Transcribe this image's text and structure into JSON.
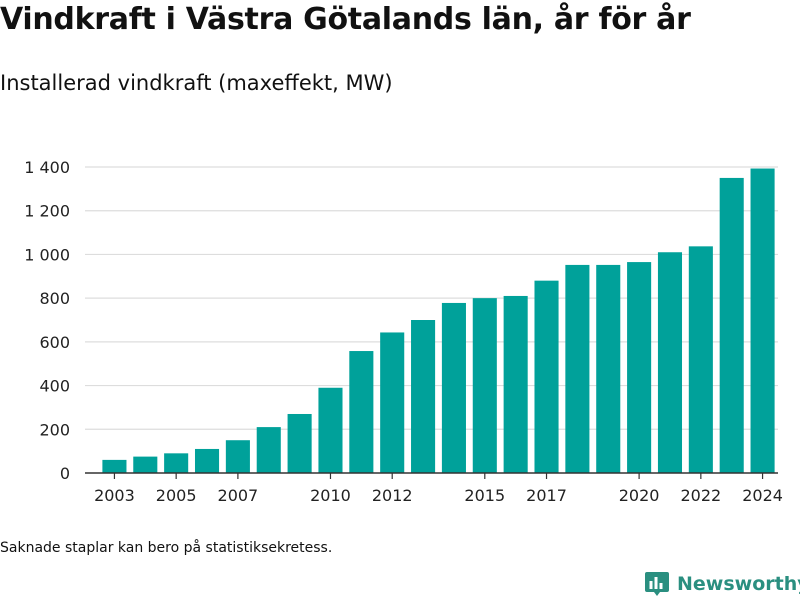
{
  "title": "Vindkraft i Västra Götalands län, år för år",
  "subtitle": "Installerad vindkraft (maxeffekt, MW)",
  "footnote": "Saknade staplar kan bero på statistiksekretess.",
  "brand": {
    "name": "Newsworthy",
    "icon": "bar-chart-logo-icon",
    "color": "#2a8f80"
  },
  "colors": {
    "bar": "#00a19a",
    "grid": "#dddddd",
    "axis": "#333333",
    "text": "#222222"
  },
  "chart_data": {
    "type": "bar",
    "categories": [
      "2003",
      "2004",
      "2005",
      "2006",
      "2007",
      "2008",
      "2009",
      "2010",
      "2011",
      "2012",
      "2013",
      "2014",
      "2015",
      "2016",
      "2017",
      "2018",
      "2019",
      "2020",
      "2021",
      "2022",
      "2023",
      "2024"
    ],
    "values": [
      60,
      75,
      90,
      110,
      150,
      210,
      270,
      390,
      558,
      643,
      700,
      778,
      800,
      810,
      880,
      952,
      952,
      965,
      1010,
      1037,
      1350,
      1393
    ],
    "tick_labels_x": [
      "2003",
      "2005",
      "2007",
      "2010",
      "2012",
      "2015",
      "2017",
      "2020",
      "2022",
      "2024"
    ],
    "yticks": [
      0,
      200,
      400,
      600,
      800,
      1000,
      1200,
      1400
    ],
    "ytick_labels": [
      "0",
      "200",
      "400",
      "600",
      "800",
      "1 000",
      "1 200",
      "1 400"
    ],
    "ylim": [
      0,
      1450
    ],
    "xlabel": "",
    "ylabel": "",
    "grid": true,
    "legend": "none"
  }
}
